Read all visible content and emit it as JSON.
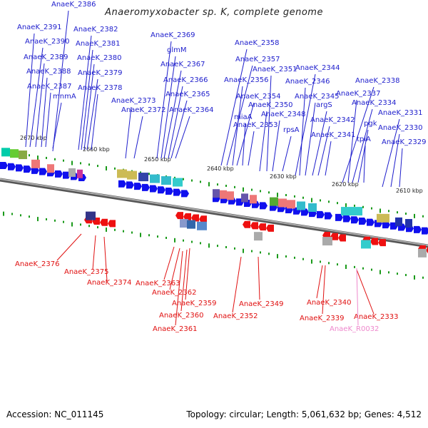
{
  "title": "Anaeromyxobacter sp. K, complete genome",
  "footer": {
    "accession": "Accession: NC_011145",
    "info": "Topology: circular; Length: 5,061,632 bp; Genes: 4,512"
  },
  "colors": {
    "forward_label": "#1d1dcc",
    "reverse_label": "#e01010",
    "rna_label": "#ee88cc",
    "backbone": "#888888",
    "forward_arrow": "#1010ee",
    "reverse_arrow": "#ee1010",
    "tick": "#1a9a1a"
  },
  "scale": [
    "2670 kbp",
    "2660 kbp",
    "2650 kbp",
    "2640 kbp",
    "2630 kbp",
    "2620 kbp",
    "2610 kbp"
  ],
  "forward_genes": [
    "AnaeK_2386",
    "AnaeK_2391",
    "AnaeK_2390",
    "AnaeK_2389",
    "AnaeK_2388",
    "AnaeK_2387",
    "mnmA",
    "AnaeK_2382",
    "AnaeK_2381",
    "AnaeK_2380",
    "AnaeK_2379",
    "AnaeK_2378",
    "AnaeK_2369",
    "glmM",
    "AnaeK_2367",
    "AnaeK_2366",
    "AnaeK_2365",
    "AnaeK_2373",
    "AnaeK_2372",
    "AnaeK_2364",
    "AnaeK_2358",
    "AnaeK_2357",
    "AnaeK_2356",
    "AnaeK_2354",
    "miaA",
    "AnaeK_2353",
    "AnaeK_2351",
    "AnaeK_2350",
    "AnaeK_2348",
    "rpsA",
    "AnaeK_2344",
    "AnaeK_2346",
    "AnaeK_2345",
    "argS",
    "AnaeK_2342",
    "AnaeK_2341",
    "AnaeK_2338",
    "AnaeK_2337",
    "AnaeK_2334",
    "pgk",
    "tpiA",
    "AnaeK_2331",
    "AnaeK_2330",
    "AnaeK_2329"
  ],
  "reverse_genes": [
    "AnaeK_2376",
    "AnaeK_2375",
    "AnaeK_2374",
    "AnaeK_2363",
    "AnaeK_2362",
    "AnaeK_2359",
    "AnaeK_2360",
    "AnaeK_2361",
    "AnaeK_2352",
    "AnaeK_2349",
    "AnaeK_2340",
    "AnaeK_2339",
    "AnaeK_2333"
  ],
  "rna_genes": [
    "AnaeK_R0032"
  ]
}
